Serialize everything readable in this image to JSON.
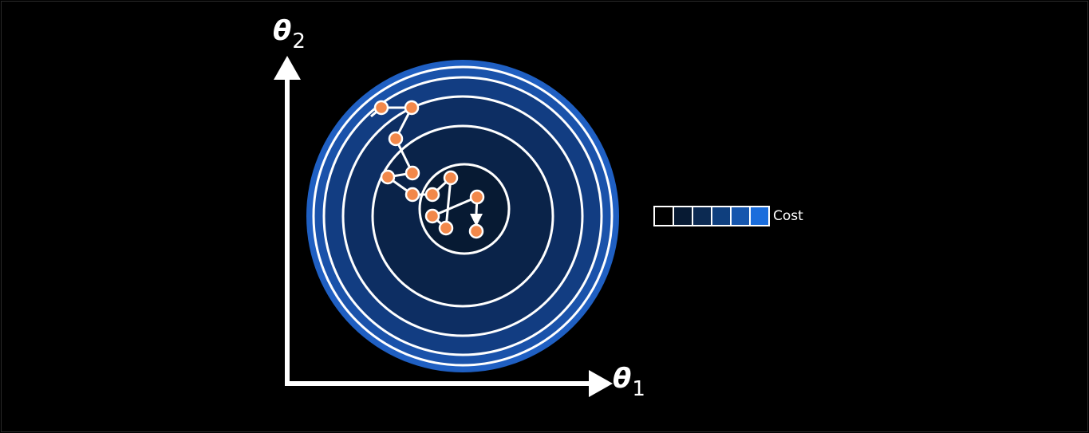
{
  "axes": {
    "x_label": "θ",
    "x_subscript": "1",
    "y_label": "θ",
    "y_subscript": "2"
  },
  "legend": {
    "label": "Cost",
    "swatch_colors": [
      "#000000",
      "#071a33",
      "#0c2a52",
      "#0f3f7e",
      "#1656ad",
      "#1a6ddc"
    ]
  },
  "contour_colors": {
    "outer": "#1f5fc2",
    "ring_2": "#1a52aa",
    "ring_3": "#123d82",
    "ring_4": "#0d2e63",
    "ring_5": "#0a2349",
    "center": "#071a33",
    "line": "#ffffff"
  },
  "path_points_color": "#f2884a"
}
